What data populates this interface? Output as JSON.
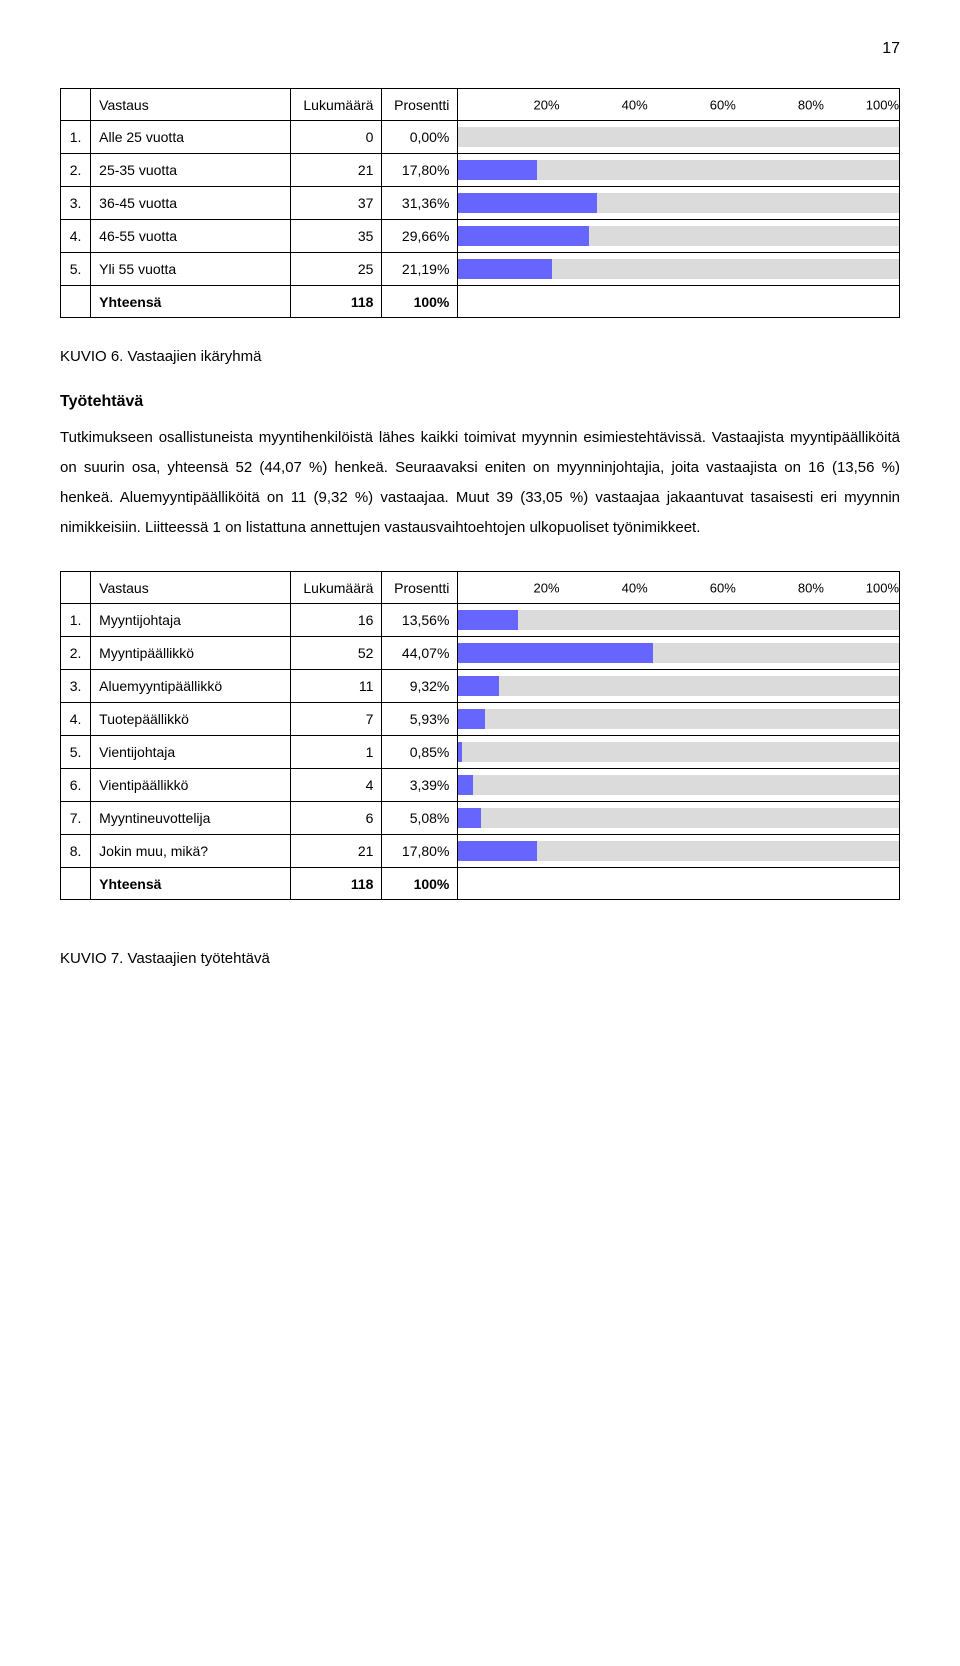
{
  "page_number": "17",
  "bar_color": "#6666ff",
  "track_color": "#dbdbdb",
  "scale_labels": [
    "20%",
    "40%",
    "60%",
    "80%",
    "100%"
  ],
  "scale_positions": [
    20,
    40,
    60,
    80,
    100
  ],
  "table1": {
    "headers": {
      "col2": "Vastaus",
      "col3": "Lukumäärä",
      "col4": "Prosentti"
    },
    "rows": [
      {
        "n": "1.",
        "label": "Alle 25 vuotta",
        "count": "0",
        "pct_text": "0,00%",
        "pct_val": 0.0
      },
      {
        "n": "2.",
        "label": "25-35 vuotta",
        "count": "21",
        "pct_text": "17,80%",
        "pct_val": 17.8
      },
      {
        "n": "3.",
        "label": "36-45 vuotta",
        "count": "37",
        "pct_text": "31,36%",
        "pct_val": 31.36
      },
      {
        "n": "4.",
        "label": "46-55 vuotta",
        "count": "35",
        "pct_text": "29,66%",
        "pct_val": 29.66
      },
      {
        "n": "5.",
        "label": "Yli 55 vuotta",
        "count": "25",
        "pct_text": "21,19%",
        "pct_val": 21.19
      }
    ],
    "total": {
      "label": "Yhteensä",
      "count": "118",
      "pct": "100%"
    }
  },
  "kuvio6": "KUVIO 6. Vastaajien ikäryhmä",
  "section_title": "Työtehtävä",
  "body_text": "Tutkimukseen osallistuneista myyntihenkilöistä lähes kaikki toimivat myynnin esimiestehtävissä. Vastaajista myyntipäälliköitä on suurin osa, yhteensä 52 (44,07 %) henkeä. Seuraavaksi eniten on myynninjohtajia, joita vastaajista on 16 (13,56 %) henkeä. Aluemyyntipäälliköitä on 11 (9,32 %) vastaajaa. Muut 39 (33,05 %) vastaajaa jakaantuvat tasaisesti eri myynnin nimikkeisiin. Liitteessä 1 on listattuna annettujen vastausvaihtoehtojen ulkopuoliset työnimikkeet.",
  "table2": {
    "headers": {
      "col2": "Vastaus",
      "col3": "Lukumäärä",
      "col4": "Prosentti"
    },
    "rows": [
      {
        "n": "1.",
        "label": "Myyntijohtaja",
        "count": "16",
        "pct_text": "13,56%",
        "pct_val": 13.56
      },
      {
        "n": "2.",
        "label": "Myyntipäällikkö",
        "count": "52",
        "pct_text": "44,07%",
        "pct_val": 44.07
      },
      {
        "n": "3.",
        "label": "Aluemyyntipäällikkö",
        "count": "11",
        "pct_text": "9,32%",
        "pct_val": 9.32
      },
      {
        "n": "4.",
        "label": "Tuotepäällikkö",
        "count": "7",
        "pct_text": "5,93%",
        "pct_val": 5.93
      },
      {
        "n": "5.",
        "label": "Vientijohtaja",
        "count": "1",
        "pct_text": "0,85%",
        "pct_val": 0.85
      },
      {
        "n": "6.",
        "label": "Vientipäällikkö",
        "count": "4",
        "pct_text": "3,39%",
        "pct_val": 3.39
      },
      {
        "n": "7.",
        "label": "Myyntineuvottelija",
        "count": "6",
        "pct_text": "5,08%",
        "pct_val": 5.08
      },
      {
        "n": "8.",
        "label": "Jokin muu, mikä?",
        "count": "21",
        "pct_text": "17,80%",
        "pct_val": 17.8
      }
    ],
    "total": {
      "label": "Yhteensä",
      "count": "118",
      "pct": "100%"
    }
  },
  "kuvio7": "KUVIO 7. Vastaajien työtehtävä"
}
